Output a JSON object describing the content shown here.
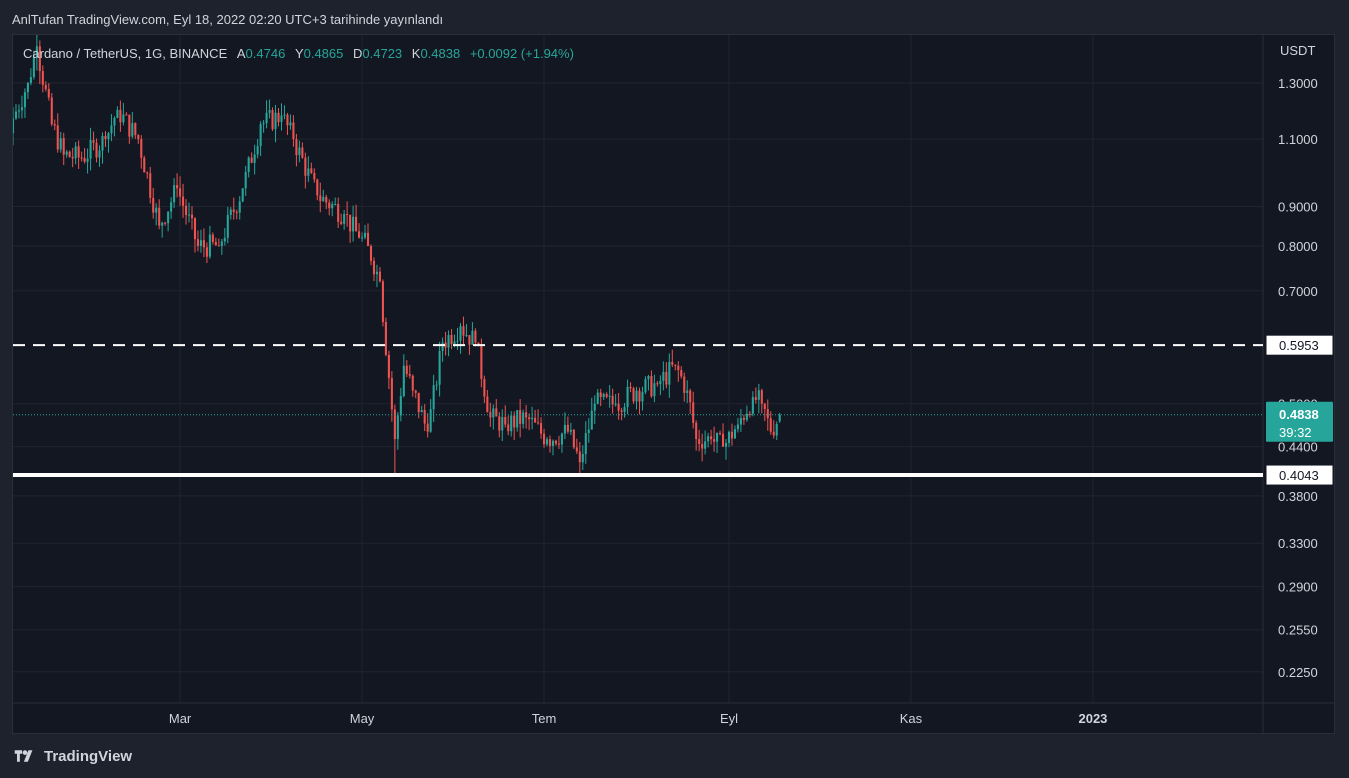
{
  "header": {
    "publisher_line": "AnlTufan TradingView.com, Eyl 18, 2022 02:20 UTC+3 tarihinde yayınlandı"
  },
  "legend": {
    "symbol": "Cardano / TetherUS, 1G, BINANCE",
    "open_key": "A",
    "open": "0.4746",
    "high_key": "Y",
    "high": "0.4865",
    "low_key": "D",
    "low": "0.4723",
    "close_key": "K",
    "close": "0.4838",
    "change": "+0.0092 (+1.94%)"
  },
  "price_axis": {
    "currency": "USDT",
    "last_price_label": "0.4838",
    "countdown": "39:32",
    "resistance_label": "0.5953",
    "support_label": "0.4043"
  },
  "footer": {
    "brand": "TradingView"
  },
  "colors": {
    "up": "#26a69a",
    "down": "#ef5350",
    "background": "#131722",
    "grid": "#1f2430",
    "lines": "#ffffff",
    "last_price_bg": "#26a69a"
  },
  "chart_data": {
    "type": "candlestick",
    "title": "Cardano / TetherUS, 1G, BINANCE",
    "scale": "log",
    "ylim": [
      0.205,
      1.5
    ],
    "y_ticks": [
      "1.3000",
      "1.1000",
      "0.9000",
      "0.8000",
      "0.7000",
      "0.5000",
      "0.4400",
      "0.3800",
      "0.3300",
      "0.2900",
      "0.2550",
      "0.2250"
    ],
    "y_tick_values": [
      1.3,
      1.1,
      0.9,
      0.8,
      0.7,
      0.5,
      0.44,
      0.38,
      0.33,
      0.29,
      0.255,
      0.225
    ],
    "x_ticks": [
      "Mar",
      "May",
      "Tem",
      "Eyl",
      "Kas",
      "2023"
    ],
    "x_tick_dates": [
      "2022-03-01",
      "2022-05-01",
      "2022-07-01",
      "2022-09-01",
      "2022-11-01",
      "2023-01-01"
    ],
    "x_range": [
      "2022-01-04",
      "2023-02-27"
    ],
    "horizontal_lines": [
      {
        "price": 0.5953,
        "style": "dashed",
        "label": "0.5953"
      },
      {
        "price": 0.4043,
        "style": "solid",
        "label": "0.4043"
      }
    ],
    "last_price": 0.4838,
    "series_anchor_points": [
      {
        "date": "2022-01-04",
        "close": 1.17
      },
      {
        "date": "2022-01-09",
        "close": 1.3
      },
      {
        "date": "2022-01-12",
        "close": 1.45
      },
      {
        "date": "2022-01-17",
        "close": 1.15
      },
      {
        "date": "2022-01-21",
        "close": 1.05
      },
      {
        "date": "2022-01-27",
        "close": 1.04
      },
      {
        "date": "2022-02-04",
        "close": 1.1
      },
      {
        "date": "2022-02-08",
        "close": 1.2
      },
      {
        "date": "2022-02-15",
        "close": 1.1
      },
      {
        "date": "2022-02-22",
        "close": 0.85
      },
      {
        "date": "2022-02-28",
        "close": 0.95
      },
      {
        "date": "2022-03-07",
        "close": 0.8
      },
      {
        "date": "2022-03-14",
        "close": 0.8
      },
      {
        "date": "2022-03-22",
        "close": 0.95
      },
      {
        "date": "2022-03-28",
        "close": 1.15
      },
      {
        "date": "2022-04-04",
        "close": 1.18
      },
      {
        "date": "2022-04-08",
        "close": 1.1
      },
      {
        "date": "2022-04-16",
        "close": 0.93
      },
      {
        "date": "2022-04-25",
        "close": 0.88
      },
      {
        "date": "2022-04-30",
        "close": 0.82
      },
      {
        "date": "2022-05-03",
        "close": 0.8
      },
      {
        "date": "2022-05-07",
        "close": 0.72
      },
      {
        "date": "2022-05-10",
        "close": 0.54
      },
      {
        "date": "2022-05-12",
        "close": 0.45
      },
      {
        "date": "2022-05-15",
        "close": 0.56
      },
      {
        "date": "2022-05-18",
        "close": 0.52
      },
      {
        "date": "2022-05-23",
        "close": 0.46
      },
      {
        "date": "2022-05-28",
        "close": 0.6
      },
      {
        "date": "2022-06-03",
        "close": 0.63
      },
      {
        "date": "2022-06-08",
        "close": 0.6
      },
      {
        "date": "2022-06-13",
        "close": 0.48
      },
      {
        "date": "2022-06-18",
        "close": 0.47
      },
      {
        "date": "2022-06-25",
        "close": 0.48
      },
      {
        "date": "2022-07-02",
        "close": 0.45
      },
      {
        "date": "2022-07-09",
        "close": 0.46
      },
      {
        "date": "2022-07-13",
        "close": 0.42
      },
      {
        "date": "2022-07-18",
        "close": 0.5
      },
      {
        "date": "2022-07-25",
        "close": 0.5
      },
      {
        "date": "2022-08-01",
        "close": 0.52
      },
      {
        "date": "2022-08-08",
        "close": 0.53
      },
      {
        "date": "2022-08-14",
        "close": 0.56
      },
      {
        "date": "2022-08-18",
        "close": 0.52
      },
      {
        "date": "2022-08-21",
        "close": 0.45
      },
      {
        "date": "2022-08-26",
        "close": 0.45
      },
      {
        "date": "2022-08-30",
        "close": 0.44
      },
      {
        "date": "2022-09-04",
        "close": 0.47
      },
      {
        "date": "2022-09-09",
        "close": 0.51
      },
      {
        "date": "2022-09-12",
        "close": 0.5
      },
      {
        "date": "2022-09-15",
        "close": 0.46
      },
      {
        "date": "2022-09-18",
        "close": 0.4838
      }
    ]
  }
}
